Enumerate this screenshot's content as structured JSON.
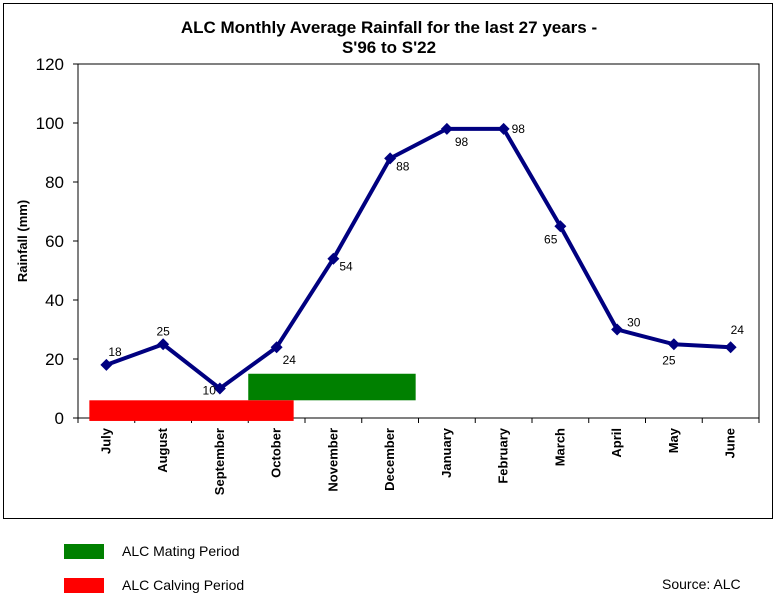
{
  "chart_data": {
    "type": "line",
    "title_lines": [
      "ALC Monthly Average Rainfall for the last 27 years -",
      "S'96 to S'22"
    ],
    "ylabel": "Rainfall (mm)",
    "xlabel": "",
    "ylim": [
      0,
      120
    ],
    "yticks": [
      "0",
      "20",
      "40",
      "60",
      "80",
      "100",
      "120"
    ],
    "categories": [
      "July",
      "August",
      "September",
      "October",
      "November",
      "December",
      "January",
      "February",
      "March",
      "April",
      "May",
      "June"
    ],
    "series": [
      {
        "values": [
          18,
          25,
          10,
          24,
          54,
          88,
          98,
          98,
          65,
          30,
          25,
          24
        ],
        "color": "#000080"
      }
    ],
    "data_labels": [
      "18",
      "25",
      "10",
      "24",
      "54",
      "88",
      "98",
      "98",
      "65",
      "30",
      "25",
      "24"
    ],
    "periods": [
      {
        "name": "ALC Mating Period",
        "color": "#008000",
        "start": "October",
        "end": "December"
      },
      {
        "name": "ALC Calving Period",
        "color": "#ff0000",
        "start": "July",
        "end": "October"
      }
    ],
    "grid": false
  },
  "legend": {
    "mating": {
      "label": "ALC Mating Period",
      "color": "#008000"
    },
    "calving": {
      "label": "ALC Calving Period",
      "color": "#ff0000"
    }
  },
  "source": "Source: ALC"
}
